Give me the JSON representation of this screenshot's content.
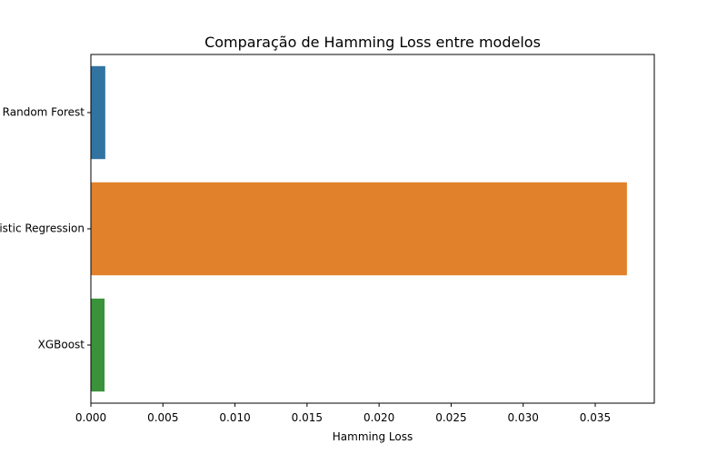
{
  "chart_data": {
    "type": "bar",
    "orientation": "horizontal",
    "title": "Comparação de Hamming Loss entre modelos",
    "xlabel": "Hamming Loss",
    "ylabel": "",
    "categories": [
      "Random Forest",
      "Logistic Regression",
      "XGBoost"
    ],
    "values": [
      0.001,
      0.0372,
      0.00095
    ],
    "colors": [
      "#3274a1",
      "#e1812c",
      "#3a923a"
    ],
    "xlim": [
      0,
      0.0391
    ],
    "xticks": [
      0.0,
      0.005,
      0.01,
      0.015,
      0.02,
      0.025,
      0.03,
      0.035
    ],
    "xtick_labels": [
      "0.000",
      "0.005",
      "0.010",
      "0.015",
      "0.020",
      "0.025",
      "0.030",
      "0.035"
    ],
    "grid": false,
    "legend": "none"
  }
}
